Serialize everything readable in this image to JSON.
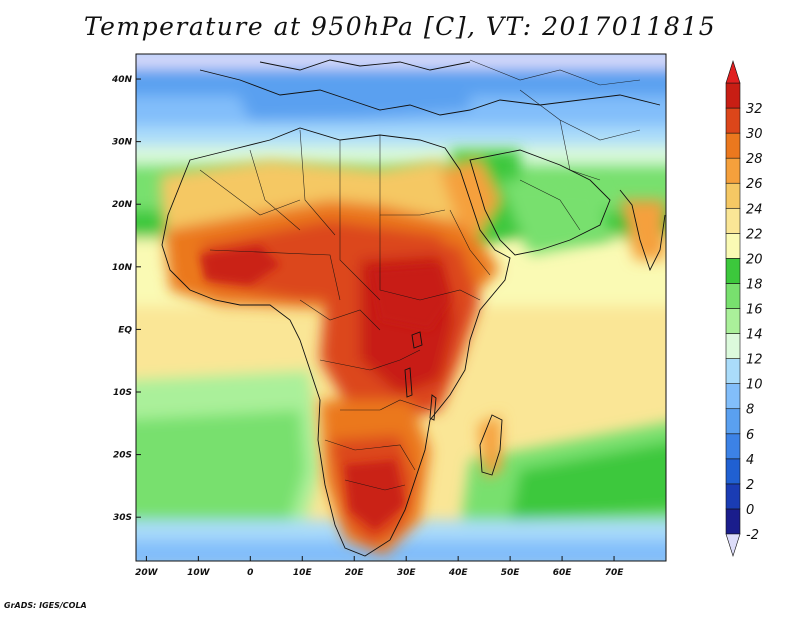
{
  "title": "Temperature at 950hPa [C], VT: 2017011815",
  "footer": "GrADS: IGES/COLA",
  "map": {
    "lon_range": [
      -22,
      80
    ],
    "lat_range": [
      -37,
      44
    ],
    "lat_ticks": [
      {
        "value": 40,
        "label": "40N"
      },
      {
        "value": 30,
        "label": "30N"
      },
      {
        "value": 20,
        "label": "20N"
      },
      {
        "value": 10,
        "label": "10N"
      },
      {
        "value": 0,
        "label": "EQ"
      },
      {
        "value": -10,
        "label": "10S"
      },
      {
        "value": -20,
        "label": "20S"
      },
      {
        "value": -30,
        "label": "30S"
      }
    ],
    "lon_ticks": [
      {
        "value": -20,
        "label": "20W"
      },
      {
        "value": -10,
        "label": "10W"
      },
      {
        "value": 0,
        "label": "0"
      },
      {
        "value": 10,
        "label": "10E"
      },
      {
        "value": 20,
        "label": "20E"
      },
      {
        "value": 30,
        "label": "30E"
      },
      {
        "value": 40,
        "label": "40E"
      },
      {
        "value": 50,
        "label": "50E"
      },
      {
        "value": 60,
        "label": "60E"
      },
      {
        "value": 70,
        "label": "70E"
      }
    ]
  },
  "colorbar": {
    "levels": [
      "-2",
      "0",
      "2",
      "4",
      "6",
      "8",
      "10",
      "12",
      "14",
      "16",
      "18",
      "20",
      "22",
      "24",
      "26",
      "28",
      "30",
      "32"
    ],
    "colors": [
      "#1a1d8c",
      "#1a3cb4",
      "#2060d2",
      "#3c82e6",
      "#5aa0f0",
      "#82befa",
      "#aadcfa",
      "#dcfadc",
      "#aaf09a",
      "#78e06e",
      "#3cc83c",
      "#fafab4",
      "#fae696",
      "#f5c864",
      "#f5a03c",
      "#eb781e",
      "#dc461a",
      "#c81e14"
    ],
    "low_arrow_color": "#ddddfa",
    "high_arrow_color": "#e02020"
  }
}
